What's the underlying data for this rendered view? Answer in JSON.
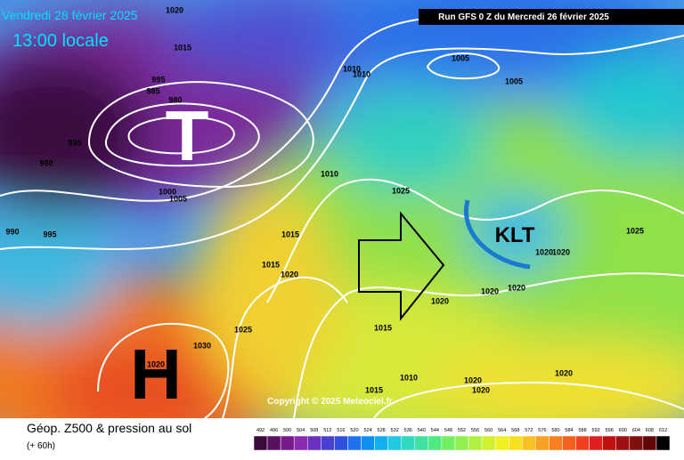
{
  "header": {
    "date": "Vendredi 28 février 2025",
    "time": "13:00 locale",
    "run": "Run GFS 0 Z du Mercredi 26 février 2025"
  },
  "systems": {
    "low": "T",
    "high": "H",
    "feature": "KLT"
  },
  "isobar_labels": [
    1020,
    1015,
    995,
    985,
    980,
    995,
    990,
    1000,
    1005,
    1010,
    1010,
    1010,
    1005,
    1005,
    1025,
    990,
    995,
    1015,
    1015,
    1020,
    1025,
    1030,
    1020,
    1015,
    1020,
    1020,
    1020,
    1020,
    1020,
    1025,
    1010,
    1015,
    1020,
    1020,
    1020
  ],
  "copyright": "Copyright © 2025 Meteociel.fr",
  "legend": {
    "title": "Géop. Z500 & pression au sol",
    "lead": "(+ 60h)"
  },
  "colorbar": {
    "labels": [
      492,
      496,
      500,
      504,
      508,
      512,
      516,
      520,
      524,
      528,
      532,
      536,
      540,
      544,
      548,
      552,
      556,
      560,
      564,
      568,
      572,
      576,
      580,
      584,
      588,
      592,
      596,
      600,
      604,
      608,
      612
    ],
    "colors": [
      "#3a0a3a",
      "#5a1060",
      "#7a1a8a",
      "#8a2ab0",
      "#6a30c0",
      "#4a40d0",
      "#3050e0",
      "#2070f0",
      "#1090f0",
      "#10b0f0",
      "#20c8e0",
      "#30d8c0",
      "#40e0a0",
      "#50e880",
      "#70f060",
      "#90f050",
      "#b0f040",
      "#d0f030",
      "#f0f020",
      "#f8e020",
      "#f8c020",
      "#f8a020",
      "#f88020",
      "#f86020",
      "#f04020",
      "#e02020",
      "#c01010",
      "#a01010",
      "#801010",
      "#600808",
      "#000000"
    ]
  }
}
